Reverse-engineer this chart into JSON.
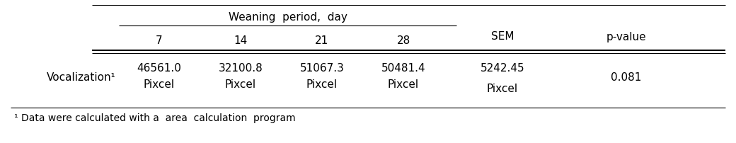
{
  "header_group": "Weaning  period,  day",
  "subheaders": [
    "7",
    "14",
    "21",
    "28"
  ],
  "col_sem": "SEM",
  "col_pvalue": "p-value",
  "row_label": "Vocalization¹",
  "val_7": "46561.0",
  "val_14": "32100.8",
  "val_21": "51067.3",
  "val_28": "50481.4",
  "unit": "Pixcel",
  "sem_top": "5242.45",
  "sem_bot": "Pixcel",
  "pvalue": "0.081",
  "footnote": "¹ Data were calculated with a  area  calculation  program",
  "bg_color": "#ffffff",
  "text_color": "#000000",
  "font_size": 11,
  "footnote_font_size": 10
}
